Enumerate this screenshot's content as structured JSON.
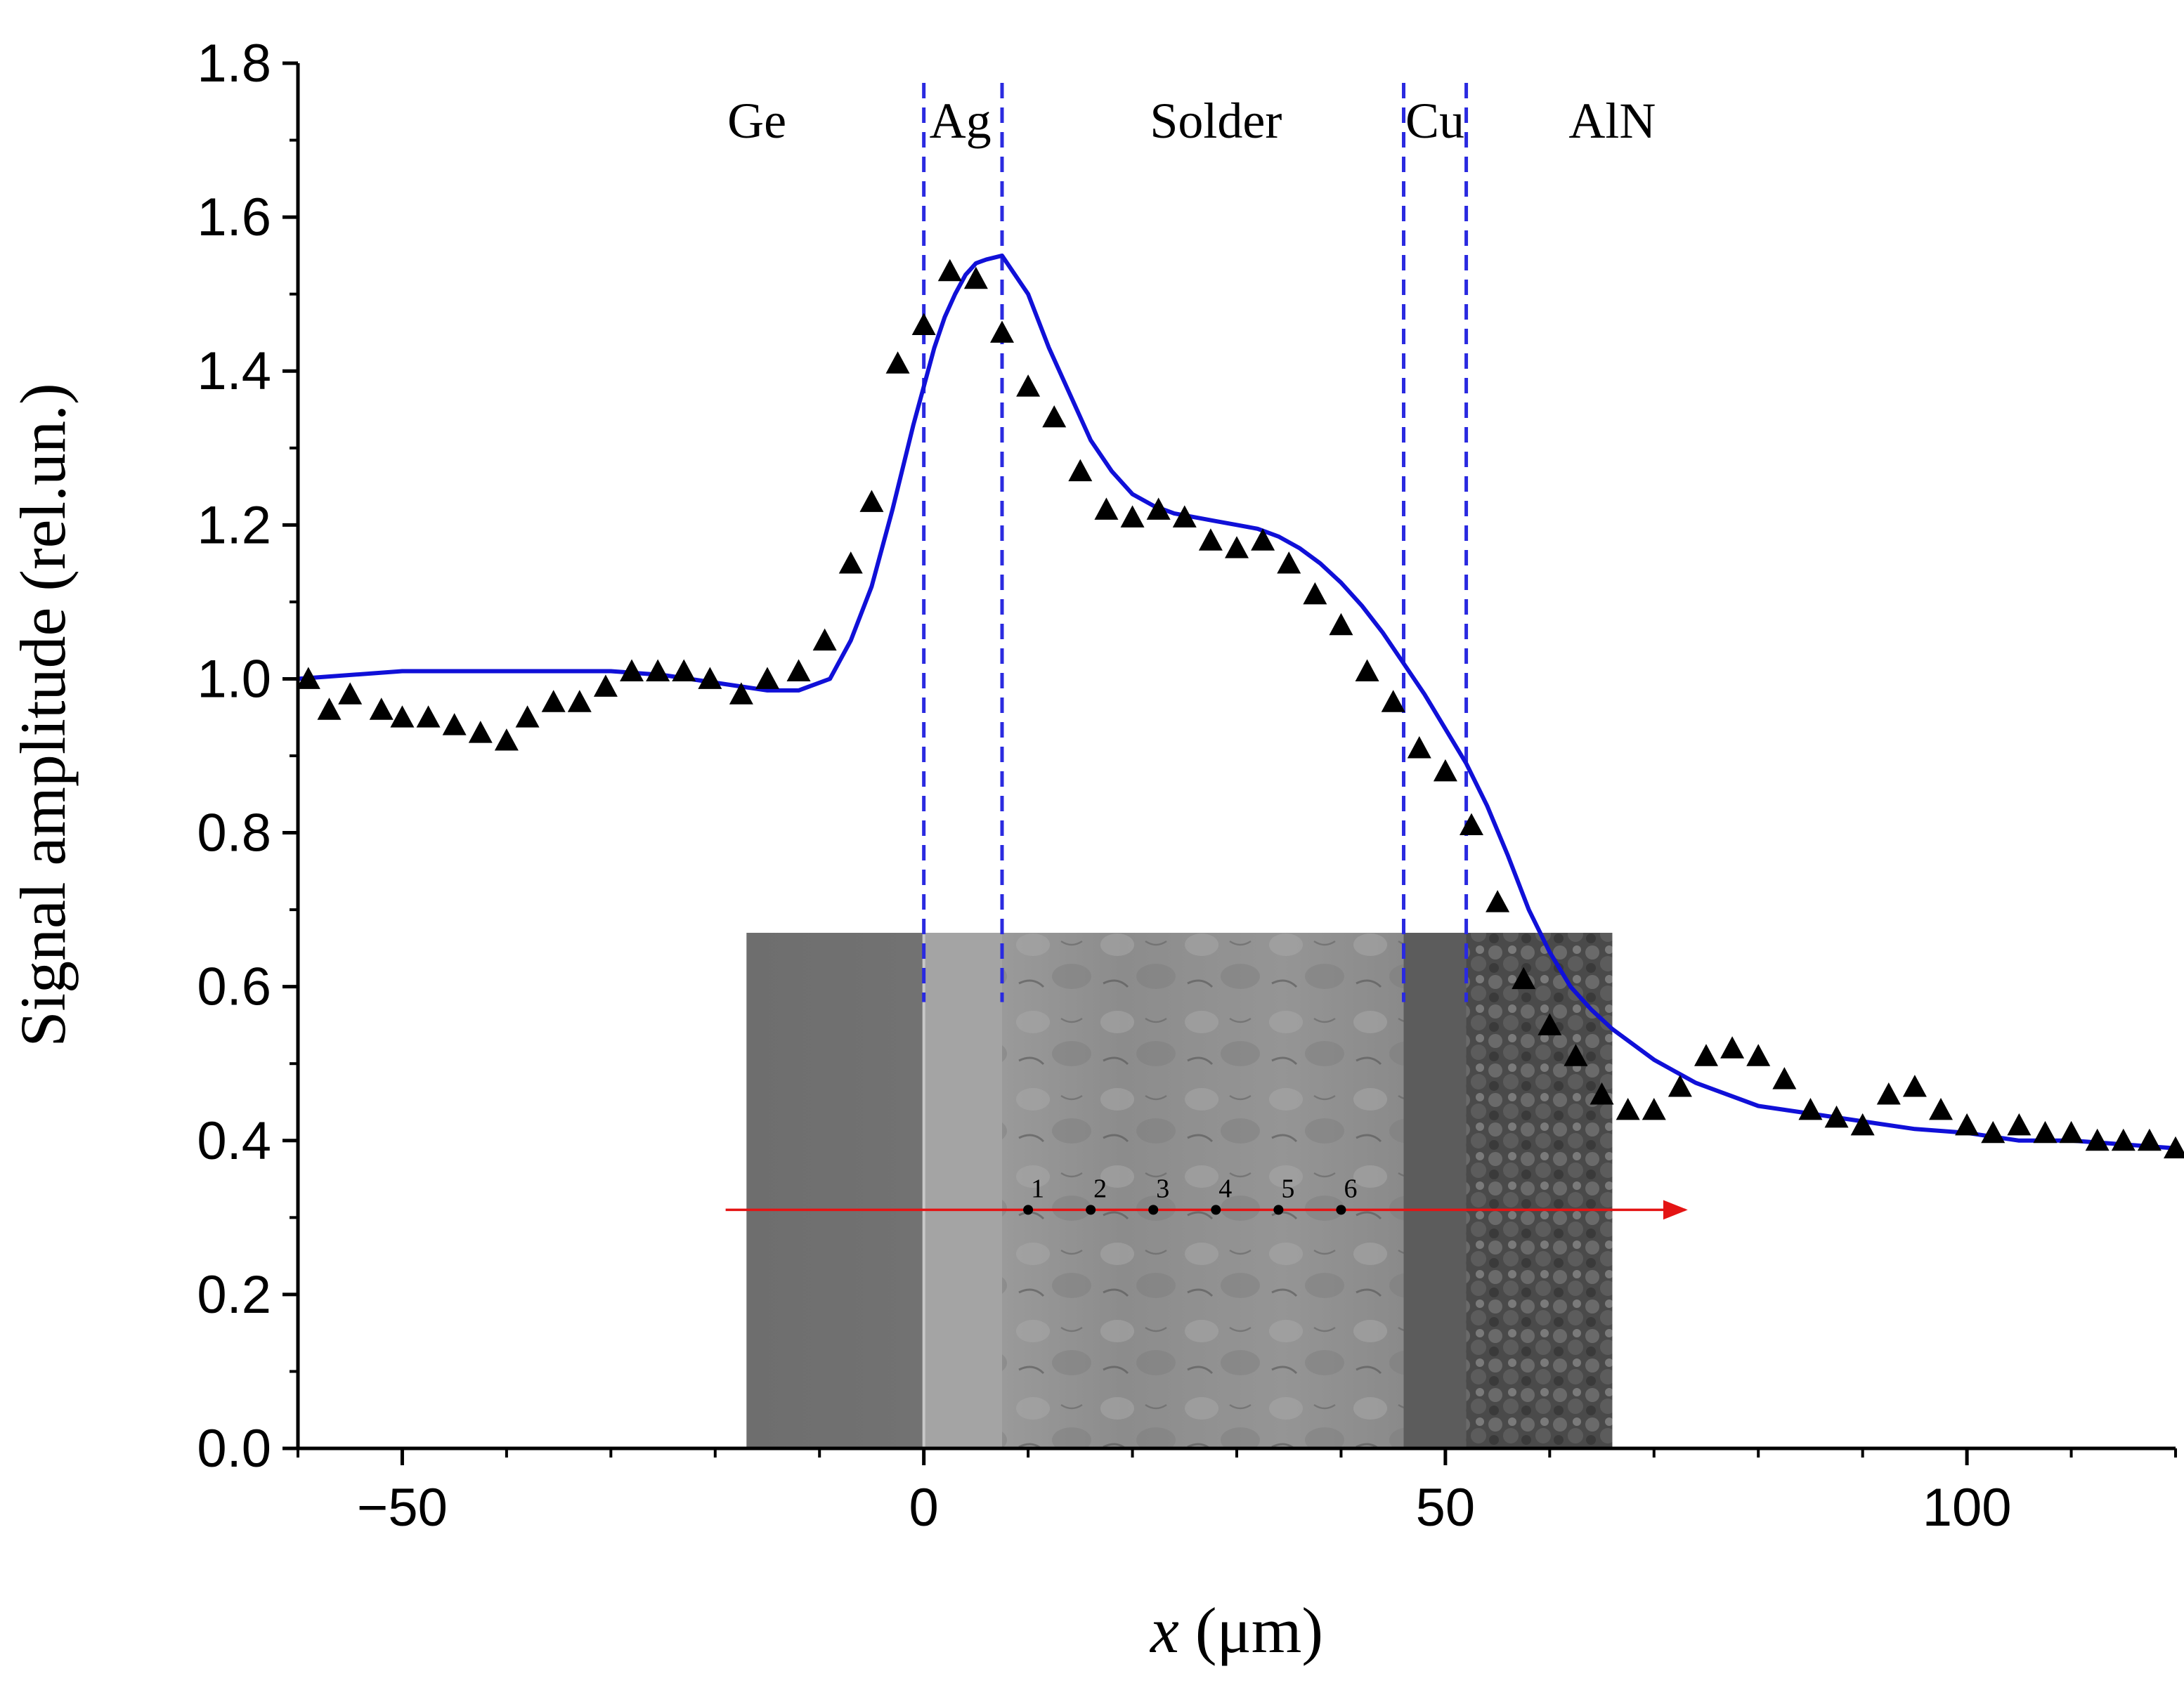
{
  "chart_data": {
    "type": "scatter",
    "xlabel_var": "x",
    "xlabel_unit": "(μm)",
    "ylabel": "Signal amplitude (rel.un.)",
    "xlim": [
      -60,
      120
    ],
    "ylim": [
      0,
      1.8
    ],
    "x_ticks": [
      -50,
      0,
      50,
      100
    ],
    "x_tick_labels": [
      "−50",
      "0",
      "50",
      "100"
    ],
    "y_ticks": [
      0.0,
      0.2,
      0.4,
      0.6,
      0.8,
      1.0,
      1.2,
      1.4,
      1.6,
      1.8
    ],
    "y_tick_labels": [
      "0.0",
      "0.2",
      "0.4",
      "0.6",
      "0.8",
      "1.0",
      "1.2",
      "1.4",
      "1.6",
      "1.8"
    ],
    "colors": {
      "fit": "#1010d8",
      "points": "#000000",
      "boundaries": "#2a2ae0",
      "arrow": "#e41414"
    },
    "region_labels": [
      {
        "text": "Ge",
        "x": -16
      },
      {
        "text": "Ag",
        "x": 3.5
      },
      {
        "text": "Solder",
        "x": 28
      },
      {
        "text": "Cu",
        "x": 49
      },
      {
        "text": "AlN",
        "x": 66
      }
    ],
    "boundaries_x": [
      0,
      7.5,
      46,
      52
    ],
    "series": [
      {
        "name": "measured",
        "marker": "triangle",
        "x": [
          -59,
          -57,
          -55,
          -52,
          -50,
          -47.5,
          -45,
          -42.5,
          -40,
          -38,
          -35.5,
          -33,
          -30.5,
          -28,
          -25.5,
          -23,
          -20.5,
          -17.5,
          -15,
          -12,
          -9.5,
          -7,
          -5,
          -2.5,
          0,
          2.5,
          5,
          7.5,
          10,
          12.5,
          15,
          17.5,
          20,
          22.5,
          25,
          27.5,
          30,
          32.5,
          35,
          37.5,
          40,
          42.5,
          45,
          47.5,
          50,
          52.5,
          55,
          57.5,
          60,
          62.5,
          65,
          67.5,
          70,
          72.5,
          75,
          77.5,
          80,
          82.5,
          85,
          87.5,
          90,
          92.5,
          95,
          97.5,
          100,
          102.5,
          105,
          107.5,
          110,
          112.5,
          115,
          117.5,
          120
        ],
        "y": [
          1.0,
          0.96,
          0.98,
          0.96,
          0.95,
          0.95,
          0.94,
          0.93,
          0.92,
          0.95,
          0.97,
          0.97,
          0.99,
          1.01,
          1.01,
          1.01,
          1.0,
          0.98,
          1.0,
          1.01,
          1.05,
          1.15,
          1.23,
          1.41,
          1.46,
          1.53,
          1.52,
          1.45,
          1.38,
          1.34,
          1.27,
          1.22,
          1.21,
          1.22,
          1.21,
          1.18,
          1.17,
          1.18,
          1.15,
          1.11,
          1.07,
          1.01,
          0.97,
          0.91,
          0.88,
          0.81,
          0.71,
          0.61,
          0.55,
          0.51,
          0.46,
          0.44,
          0.44,
          0.47,
          0.51,
          0.52,
          0.51,
          0.48,
          0.44,
          0.43,
          0.42,
          0.46,
          0.47,
          0.44,
          0.42,
          0.41,
          0.42,
          0.41,
          0.41,
          0.4,
          0.4,
          0.4,
          0.39
        ]
      },
      {
        "name": "fit",
        "marker": "line",
        "x": [
          -60,
          -50,
          -40,
          -30,
          -25,
          -20,
          -15,
          -12,
          -9,
          -7,
          -5,
          -3,
          -1,
          0,
          1,
          2,
          3,
          4,
          5,
          6,
          7.5,
          8.5,
          10,
          12,
          14,
          16,
          18,
          20,
          22,
          24,
          26,
          28,
          30,
          32,
          34,
          36,
          38,
          40,
          42,
          44,
          46,
          48,
          50,
          52,
          54,
          56,
          58,
          60,
          62,
          64,
          66,
          68,
          70,
          72,
          74,
          76,
          78,
          80,
          85,
          90,
          95,
          100,
          105,
          110,
          115,
          120
        ],
        "y": [
          1.0,
          1.01,
          1.01,
          1.01,
          1.005,
          0.995,
          0.985,
          0.985,
          1.0,
          1.05,
          1.12,
          1.22,
          1.33,
          1.38,
          1.43,
          1.47,
          1.5,
          1.525,
          1.54,
          1.545,
          1.55,
          1.53,
          1.5,
          1.43,
          1.37,
          1.31,
          1.27,
          1.24,
          1.225,
          1.215,
          1.21,
          1.205,
          1.2,
          1.195,
          1.185,
          1.17,
          1.15,
          1.125,
          1.095,
          1.06,
          1.02,
          0.98,
          0.935,
          0.89,
          0.835,
          0.77,
          0.7,
          0.645,
          0.6,
          0.57,
          0.545,
          0.525,
          0.505,
          0.49,
          0.475,
          0.465,
          0.455,
          0.445,
          0.435,
          0.425,
          0.415,
          0.41,
          0.4,
          0.4,
          0.395,
          0.39
        ]
      }
    ],
    "inset": {
      "x_range": [
        -17,
        66
      ],
      "y_range": [
        0,
        0.67
      ],
      "arrow_x": [
        -19,
        73
      ],
      "arrow_y": 0.31,
      "points": [
        {
          "label": "1",
          "x": 10
        },
        {
          "label": "2",
          "x": 16
        },
        {
          "label": "3",
          "x": 22
        },
        {
          "label": "4",
          "x": 28
        },
        {
          "label": "5",
          "x": 34
        },
        {
          "label": "6",
          "x": 40
        }
      ]
    }
  }
}
